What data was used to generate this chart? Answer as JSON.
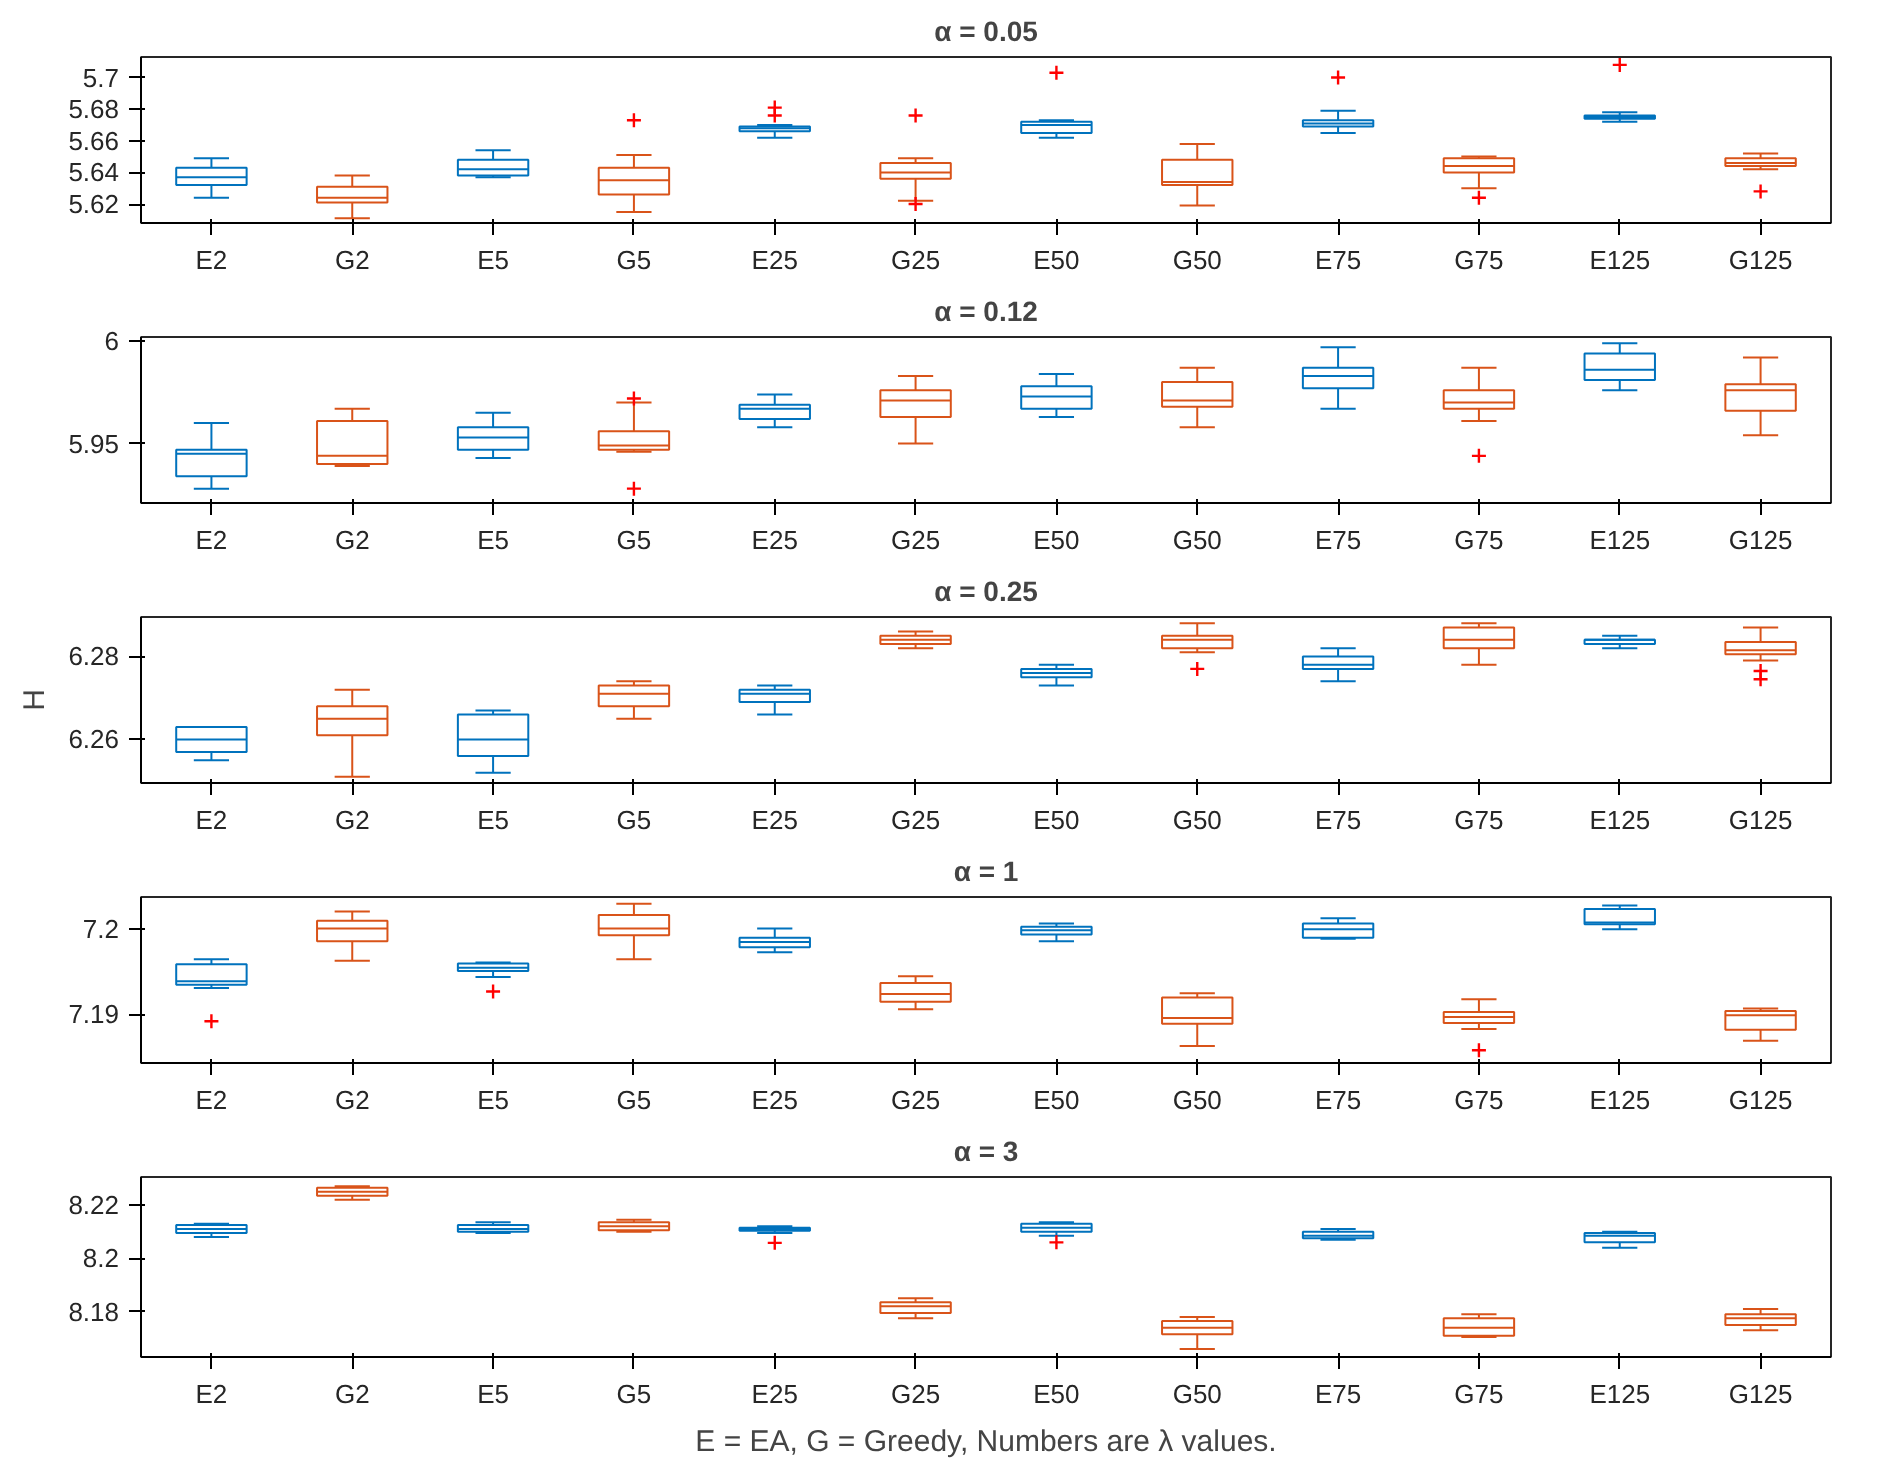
{
  "chart_data": [
    {
      "type": "box",
      "title": "α = 0.05",
      "categories": [
        "E2",
        "G2",
        "E5",
        "G5",
        "E25",
        "G25",
        "E50",
        "G50",
        "E75",
        "G75",
        "E125",
        "G125"
      ],
      "colors": [
        "#0072bd",
        "#d95319",
        "#0072bd",
        "#d95319",
        "#0072bd",
        "#d95319",
        "#0072bd",
        "#d95319",
        "#0072bd",
        "#d95319",
        "#0072bd",
        "#d95319"
      ],
      "marker": "cross",
      "ylim": [
        5.608,
        5.713
      ],
      "yticks": [
        5.62,
        5.64,
        5.66,
        5.68,
        5.7
      ],
      "boxes": [
        {
          "low": 5.624,
          "q1": 5.632,
          "median": 5.637,
          "q3": 5.643,
          "high": 5.649
        },
        {
          "low": 5.611,
          "q1": 5.621,
          "median": 5.624,
          "q3": 5.631,
          "high": 5.638
        },
        {
          "low": 5.637,
          "q1": 5.638,
          "median": 5.642,
          "q3": 5.648,
          "high": 5.654
        },
        {
          "low": 5.615,
          "q1": 5.626,
          "median": 5.635,
          "q3": 5.643,
          "high": 5.651,
          "outliers": [
            5.673
          ]
        },
        {
          "low": 5.662,
          "q1": 5.666,
          "median": 5.668,
          "q3": 5.669,
          "high": 5.67,
          "outliers": [
            5.676,
            5.681
          ]
        },
        {
          "low": 5.622,
          "q1": 5.636,
          "median": 5.64,
          "q3": 5.646,
          "high": 5.649,
          "outliers": [
            5.676,
            5.62
          ]
        },
        {
          "low": 5.662,
          "q1": 5.665,
          "median": 5.67,
          "q3": 5.672,
          "high": 5.673,
          "outliers": [
            5.703
          ]
        },
        {
          "low": 5.619,
          "q1": 5.632,
          "median": 5.634,
          "q3": 5.648,
          "high": 5.658
        },
        {
          "low": 5.665,
          "q1": 5.669,
          "median": 5.671,
          "q3": 5.673,
          "high": 5.679,
          "outliers": [
            5.7
          ]
        },
        {
          "low": 5.63,
          "q1": 5.64,
          "median": 5.644,
          "q3": 5.649,
          "high": 5.65,
          "outliers": [
            5.624
          ]
        },
        {
          "low": 5.672,
          "q1": 5.674,
          "median": 5.675,
          "q3": 5.676,
          "high": 5.678,
          "outliers": [
            5.708
          ]
        },
        {
          "low": 5.642,
          "q1": 5.644,
          "median": 5.646,
          "q3": 5.649,
          "high": 5.652,
          "outliers": [
            5.628
          ]
        }
      ]
    },
    {
      "type": "box",
      "title": "α = 0.12",
      "categories": [
        "E2",
        "G2",
        "E5",
        "G5",
        "E25",
        "G25",
        "E50",
        "G50",
        "E75",
        "G75",
        "E125",
        "G125"
      ],
      "colors": [
        "#0072bd",
        "#d95319",
        "#0072bd",
        "#d95319",
        "#0072bd",
        "#d95319",
        "#0072bd",
        "#d95319",
        "#0072bd",
        "#d95319",
        "#0072bd",
        "#d95319"
      ],
      "marker": "cross",
      "ylim": [
        5.921,
        6.002
      ],
      "yticks": [
        5.95,
        6
      ],
      "boxes": [
        {
          "low": 5.928,
          "q1": 5.934,
          "median": 5.945,
          "q3": 5.947,
          "high": 5.96
        },
        {
          "low": 5.939,
          "q1": 5.94,
          "median": 5.944,
          "q3": 5.961,
          "high": 5.967
        },
        {
          "low": 5.943,
          "q1": 5.947,
          "median": 5.953,
          "q3": 5.958,
          "high": 5.965
        },
        {
          "low": 5.946,
          "q1": 5.947,
          "median": 5.949,
          "q3": 5.956,
          "high": 5.97,
          "outliers": [
            5.972,
            5.928
          ]
        },
        {
          "low": 5.958,
          "q1": 5.962,
          "median": 5.967,
          "q3": 5.969,
          "high": 5.974
        },
        {
          "low": 5.95,
          "q1": 5.963,
          "median": 5.971,
          "q3": 5.976,
          "high": 5.983
        },
        {
          "low": 5.963,
          "q1": 5.967,
          "median": 5.973,
          "q3": 5.978,
          "high": 5.984
        },
        {
          "low": 5.958,
          "q1": 5.968,
          "median": 5.971,
          "q3": 5.98,
          "high": 5.987
        },
        {
          "low": 5.967,
          "q1": 5.977,
          "median": 5.983,
          "q3": 5.987,
          "high": 5.997
        },
        {
          "low": 5.961,
          "q1": 5.967,
          "median": 5.97,
          "q3": 5.976,
          "high": 5.987,
          "outliers": [
            5.944
          ]
        },
        {
          "low": 5.976,
          "q1": 5.981,
          "median": 5.986,
          "q3": 5.994,
          "high": 5.999
        },
        {
          "low": 5.954,
          "q1": 5.966,
          "median": 5.976,
          "q3": 5.979,
          "high": 5.992
        }
      ]
    },
    {
      "type": "box",
      "title": "α = 0.25",
      "ylabel": "H",
      "categories": [
        "E2",
        "G2",
        "E5",
        "G5",
        "E25",
        "G25",
        "E50",
        "G50",
        "E75",
        "G75",
        "E125",
        "G125"
      ],
      "colors": [
        "#0072bd",
        "#d95319",
        "#0072bd",
        "#d95319",
        "#0072bd",
        "#d95319",
        "#0072bd",
        "#d95319",
        "#0072bd",
        "#d95319",
        "#0072bd",
        "#d95319"
      ],
      "marker": "cross",
      "ylim": [
        6.2495,
        6.2895
      ],
      "yticks": [
        6.26,
        6.28
      ],
      "boxes": [
        {
          "low": 6.255,
          "q1": 6.257,
          "median": 6.26,
          "q3": 6.263,
          "high": 6.263
        },
        {
          "low": 6.251,
          "q1": 6.261,
          "median": 6.265,
          "q3": 6.268,
          "high": 6.272
        },
        {
          "low": 6.252,
          "q1": 6.256,
          "median": 6.26,
          "q3": 6.266,
          "high": 6.267
        },
        {
          "low": 6.265,
          "q1": 6.268,
          "median": 6.271,
          "q3": 6.273,
          "high": 6.274
        },
        {
          "low": 6.266,
          "q1": 6.269,
          "median": 6.271,
          "q3": 6.272,
          "high": 6.273
        },
        {
          "low": 6.282,
          "q1": 6.283,
          "median": 6.284,
          "q3": 6.285,
          "high": 6.286
        },
        {
          "low": 6.273,
          "q1": 6.275,
          "median": 6.276,
          "q3": 6.277,
          "high": 6.278
        },
        {
          "low": 6.281,
          "q1": 6.282,
          "median": 6.284,
          "q3": 6.285,
          "high": 6.288,
          "outliers": [
            6.277
          ]
        },
        {
          "low": 6.274,
          "q1": 6.277,
          "median": 6.278,
          "q3": 6.28,
          "high": 6.282
        },
        {
          "low": 6.278,
          "q1": 6.282,
          "median": 6.284,
          "q3": 6.287,
          "high": 6.288
        },
        {
          "low": 6.282,
          "q1": 6.283,
          "median": 6.284,
          "q3": 6.284,
          "high": 6.285
        },
        {
          "low": 6.279,
          "q1": 6.2805,
          "median": 6.2815,
          "q3": 6.2835,
          "high": 6.287,
          "outliers": [
            6.2765,
            6.2745
          ]
        }
      ]
    },
    {
      "type": "box",
      "title": "α = 1",
      "categories": [
        "E2",
        "G2",
        "E5",
        "G5",
        "E25",
        "G25",
        "E50",
        "G50",
        "E75",
        "G75",
        "E125",
        "G125"
      ],
      "colors": [
        "#0072bd",
        "#d95319",
        "#0072bd",
        "#d95319",
        "#0072bd",
        "#d95319",
        "#0072bd",
        "#d95319",
        "#0072bd",
        "#d95319",
        "#0072bd",
        "#d95319"
      ],
      "marker": "cross",
      "ylim": [
        7.1843,
        7.2038
      ],
      "yticks": [
        7.19,
        7.2
      ],
      "boxes": [
        {
          "low": 7.1931,
          "q1": 7.1935,
          "median": 7.1939,
          "q3": 7.1959,
          "high": 7.1965,
          "outliers": [
            7.1892
          ]
        },
        {
          "low": 7.1963,
          "q1": 7.1986,
          "median": 7.2001,
          "q3": 7.201,
          "high": 7.2021
        },
        {
          "low": 7.1944,
          "q1": 7.1951,
          "median": 7.1955,
          "q3": 7.196,
          "high": 7.1961,
          "outliers": [
            7.1927
          ]
        },
        {
          "low": 7.1965,
          "q1": 7.1993,
          "median": 7.2001,
          "q3": 7.2017,
          "high": 7.203
        },
        {
          "low": 7.1973,
          "q1": 7.1979,
          "median": 7.1985,
          "q3": 7.199,
          "high": 7.2001
        },
        {
          "low": 7.1906,
          "q1": 7.1915,
          "median": 7.1924,
          "q3": 7.1937,
          "high": 7.1945
        },
        {
          "low": 7.1986,
          "q1": 7.1994,
          "median": 7.1999,
          "q3": 7.2003,
          "high": 7.2007
        },
        {
          "low": 7.1863,
          "q1": 7.1889,
          "median": 7.1896,
          "q3": 7.192,
          "high": 7.1925
        },
        {
          "low": 7.1989,
          "q1": 7.199,
          "median": 7.2,
          "q3": 7.2007,
          "high": 7.2013
        },
        {
          "low": 7.1883,
          "q1": 7.189,
          "median": 7.1897,
          "q3": 7.1903,
          "high": 7.1918,
          "outliers": [
            7.1858
          ]
        },
        {
          "low": 7.2,
          "q1": 7.2006,
          "median": 7.2008,
          "q3": 7.2024,
          "high": 7.2028
        },
        {
          "low": 7.1869,
          "q1": 7.1882,
          "median": 7.1899,
          "q3": 7.1904,
          "high": 7.1907
        }
      ]
    },
    {
      "type": "box",
      "title": "α = 3",
      "xlabel": "E = EA, G = Greedy, Numbers are λ values.",
      "categories": [
        "E2",
        "G2",
        "E5",
        "G5",
        "E25",
        "G25",
        "E50",
        "G50",
        "E75",
        "G75",
        "E125",
        "G125"
      ],
      "colors": [
        "#0072bd",
        "#d95319",
        "#0072bd",
        "#d95319",
        "#0072bd",
        "#d95319",
        "#0072bd",
        "#d95319",
        "#0072bd",
        "#d95319",
        "#0072bd",
        "#d95319"
      ],
      "marker": "cross",
      "ylim": [
        8.163,
        8.2305
      ],
      "yticks": [
        8.18,
        8.2,
        8.22
      ],
      "boxes": [
        {
          "low": 8.208,
          "q1": 8.2095,
          "median": 8.211,
          "q3": 8.2125,
          "high": 8.213
        },
        {
          "low": 8.222,
          "q1": 8.2235,
          "median": 8.225,
          "q3": 8.2265,
          "high": 8.227
        },
        {
          "low": 8.2095,
          "q1": 8.21,
          "median": 8.211,
          "q3": 8.2125,
          "high": 8.2135
        },
        {
          "low": 8.21,
          "q1": 8.2105,
          "median": 8.212,
          "q3": 8.2135,
          "high": 8.2145
        },
        {
          "low": 8.2095,
          "q1": 8.2103,
          "median": 8.211,
          "q3": 8.2115,
          "high": 8.212,
          "outliers": [
            8.2058
          ]
        },
        {
          "low": 8.1775,
          "q1": 8.1795,
          "median": 8.182,
          "q3": 8.1835,
          "high": 8.185
        },
        {
          "low": 8.2085,
          "q1": 8.21,
          "median": 8.2115,
          "q3": 8.213,
          "high": 8.2135,
          "outliers": [
            8.206
          ]
        },
        {
          "low": 8.166,
          "q1": 8.1715,
          "median": 8.174,
          "q3": 8.1765,
          "high": 8.178
        },
        {
          "low": 8.207,
          "q1": 8.2075,
          "median": 8.2085,
          "q3": 8.21,
          "high": 8.211
        },
        {
          "low": 8.1705,
          "q1": 8.171,
          "median": 8.174,
          "q3": 8.1775,
          "high": 8.179
        },
        {
          "low": 8.204,
          "q1": 8.206,
          "median": 8.2085,
          "q3": 8.2095,
          "high": 8.21
        },
        {
          "low": 8.173,
          "q1": 8.175,
          "median": 8.1775,
          "q3": 8.179,
          "high": 8.181
        }
      ]
    }
  ]
}
